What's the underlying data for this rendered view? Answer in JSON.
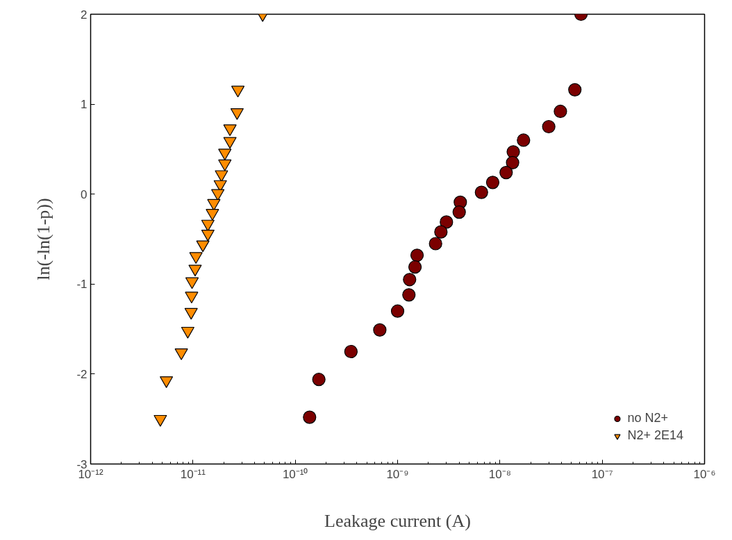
{
  "chart_data": {
    "type": "scatter",
    "xlabel": "Leakage current (A)",
    "ylabel": "ln(-ln(1-p))",
    "log": "x",
    "grid": false,
    "legend": "bottom right",
    "xlim": [
      1e-12,
      1e-06
    ],
    "ylim": [
      -3,
      2
    ],
    "xticks": [
      {
        "value": 1e-12,
        "label": "10⁻¹²"
      },
      {
        "value": 1e-11,
        "label": "10⁻¹¹"
      },
      {
        "value": 1e-10,
        "label": "10⁻¹⁰"
      },
      {
        "value": 1e-09,
        "label": "10⁻⁹"
      },
      {
        "value": 1e-08,
        "label": "10⁻⁸"
      },
      {
        "value": 1e-07,
        "label": "10⁻⁷"
      },
      {
        "value": 1e-06,
        "label": "10⁻⁶"
      }
    ],
    "yticks": [
      -3,
      -2,
      -1,
      0,
      1,
      2
    ],
    "series": [
      {
        "name": "no N2+",
        "color": "#7b0000",
        "marker": "circle",
        "x": [
          6.2e-08,
          5.4e-08,
          3.9e-08,
          3e-08,
          1.7e-08,
          1.35e-08,
          1.33e-08,
          1.15e-08,
          8.5e-09,
          6.6e-09,
          4.1e-09,
          4e-09,
          3e-09,
          2.65e-09,
          2.35e-09,
          1.55e-09,
          1.48e-09,
          1.31e-09,
          1.29e-09,
          1e-09,
          6.7e-10,
          3.5e-10,
          1.7e-10,
          1.38e-10
        ],
        "values": [
          2,
          1.16,
          0.92,
          0.75,
          0.6,
          0.47,
          0.35,
          0.24,
          0.13,
          0.02,
          -0.09,
          -0.2,
          -0.31,
          -0.42,
          -0.55,
          -0.68,
          -0.81,
          -0.95,
          -1.12,
          -1.3,
          -1.51,
          -1.75,
          -2.06,
          -2.48
        ]
      },
      {
        "name": "N2+ 2E14",
        "color": "#ff8c00",
        "marker": "triangle",
        "x": [
          4.8e-11,
          2.75e-11,
          2.7e-11,
          2.3e-11,
          2.3e-11,
          2.05e-11,
          2.05e-11,
          1.9e-11,
          1.85e-11,
          1.75e-11,
          1.6e-11,
          1.55e-11,
          1.4e-11,
          1.4e-11,
          1.25e-11,
          1.07e-11,
          1.05e-11,
          9.8e-12,
          9.7e-12,
          9.6e-12,
          8.9e-12,
          7.7e-12,
          5.5e-12,
          4.8e-12
        ],
        "values": [
          2,
          1.16,
          0.91,
          0.73,
          0.59,
          0.46,
          0.34,
          0.22,
          0.11,
          0.01,
          -0.1,
          -0.21,
          -0.33,
          -0.44,
          -0.56,
          -0.69,
          -0.83,
          -0.97,
          -1.13,
          -1.31,
          -1.52,
          -1.76,
          -2.07,
          -2.5
        ]
      }
    ]
  }
}
